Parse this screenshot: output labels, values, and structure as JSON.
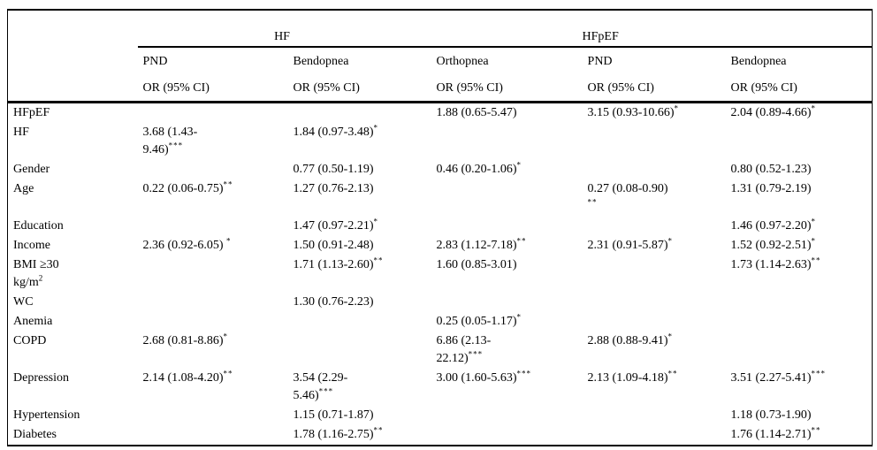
{
  "colors": {
    "text": "#000000",
    "border": "#000000",
    "background": "#ffffff"
  },
  "table": {
    "group_headers": [
      {
        "label": "HF"
      },
      {
        "label": "HFpEF"
      }
    ],
    "column_headers": [
      "PND",
      "Bendopnea",
      "Orthopnea",
      "PND",
      "Bendopnea"
    ],
    "measure_label": "OR (95% CI)",
    "rows": [
      {
        "label": {
          "v": "HFpEF",
          "s": ""
        },
        "cells": [
          null,
          null,
          {
            "v": "1.88 (0.65-5.47)",
            "s": ""
          },
          {
            "v": "3.15 (0.93-10.66)",
            "s": "*"
          },
          {
            "v": "2.04 (0.89-4.66)",
            "s": "*"
          }
        ]
      },
      {
        "label": {
          "v": "HF",
          "s": ""
        },
        "cells": [
          {
            "v": "3.68 (1.43-\n9.46)",
            "s": "***"
          },
          {
            "v": "1.84 (0.97-3.48)",
            "s": "*"
          },
          null,
          null,
          null
        ]
      },
      {
        "label": {
          "v": "Gender",
          "s": ""
        },
        "cells": [
          null,
          {
            "v": "0.77 (0.50-1.19)",
            "s": ""
          },
          {
            "v": "0.46 (0.20-1.06)",
            "s": "*"
          },
          null,
          {
            "v": "0.80 (0.52-1.23)",
            "s": ""
          }
        ]
      },
      {
        "label": {
          "v": "Age",
          "s": ""
        },
        "cells": [
          {
            "v": "0.22 (0.06-0.75)",
            "s": "**"
          },
          {
            "v": "1.27 (0.76-2.13)",
            "s": ""
          },
          null,
          {
            "v": "0.27 (0.08-0.90)\n",
            "s": "**"
          },
          {
            "v": "1.31 (0.79-2.19)",
            "s": ""
          }
        ]
      },
      {
        "label": {
          "v": "Education",
          "s": ""
        },
        "cells": [
          null,
          {
            "v": "1.47 (0.97-2.21)",
            "s": "*"
          },
          null,
          null,
          {
            "v": "1.46 (0.97-2.20)",
            "s": "*"
          }
        ]
      },
      {
        "label": {
          "v": "Income",
          "s": ""
        },
        "cells": [
          {
            "v": "2.36 (0.92-6.05) ",
            "s": "*"
          },
          {
            "v": "1.50 (0.91-2.48)",
            "s": ""
          },
          {
            "v": "2.83 (1.12-7.18)",
            "s": "**"
          },
          {
            "v": "2.31 (0.91-5.87)",
            "s": "*"
          },
          {
            "v": "1.52 (0.92-2.51)",
            "s": "*"
          }
        ]
      },
      {
        "label": {
          "v": "BMI ≥30\nkg/m",
          "s": "2"
        },
        "cells": [
          null,
          {
            "v": "1.71 (1.13-2.60)",
            "s": "**"
          },
          {
            "v": "1.60 (0.85-3.01)",
            "s": ""
          },
          null,
          {
            "v": "1.73 (1.14-2.63)",
            "s": "**"
          }
        ]
      },
      {
        "label": {
          "v": "WC",
          "s": ""
        },
        "cells": [
          null,
          {
            "v": "1.30 (0.76-2.23)",
            "s": ""
          },
          null,
          null,
          null
        ]
      },
      {
        "label": {
          "v": "Anemia",
          "s": ""
        },
        "cells": [
          null,
          null,
          {
            "v": "0.25 (0.05-1.17)",
            "s": "*"
          },
          null,
          null
        ]
      },
      {
        "label": {
          "v": "COPD",
          "s": ""
        },
        "cells": [
          {
            "v": "2.68 (0.81-8.86)",
            "s": "*"
          },
          null,
          {
            "v": "6.86 (2.13-\n22.12)",
            "s": "***"
          },
          {
            "v": "2.88 (0.88-9.41)",
            "s": "*"
          },
          null
        ]
      },
      {
        "label": {
          "v": "Depression",
          "s": ""
        },
        "cells": [
          {
            "v": "2.14 (1.08-4.20)",
            "s": "**"
          },
          {
            "v": "3.54 (2.29-\n5.46)",
            "s": "***"
          },
          {
            "v": "3.00 (1.60-5.63)",
            "s": "***"
          },
          {
            "v": "2.13 (1.09-4.18)",
            "s": "**"
          },
          {
            "v": "3.51 (2.27-5.41)",
            "s": "***"
          }
        ]
      },
      {
        "label": {
          "v": "Hypertension",
          "s": ""
        },
        "cells": [
          null,
          {
            "v": "1.15 (0.71-1.87)",
            "s": ""
          },
          null,
          null,
          {
            "v": "1.18 (0.73-1.90)",
            "s": ""
          }
        ]
      },
      {
        "label": {
          "v": "Diabetes",
          "s": ""
        },
        "cells": [
          null,
          {
            "v": "1.78 (1.16-2.75)",
            "s": "**"
          },
          null,
          null,
          {
            "v": "1.76 (1.14-2.71)",
            "s": "**"
          }
        ]
      }
    ]
  }
}
